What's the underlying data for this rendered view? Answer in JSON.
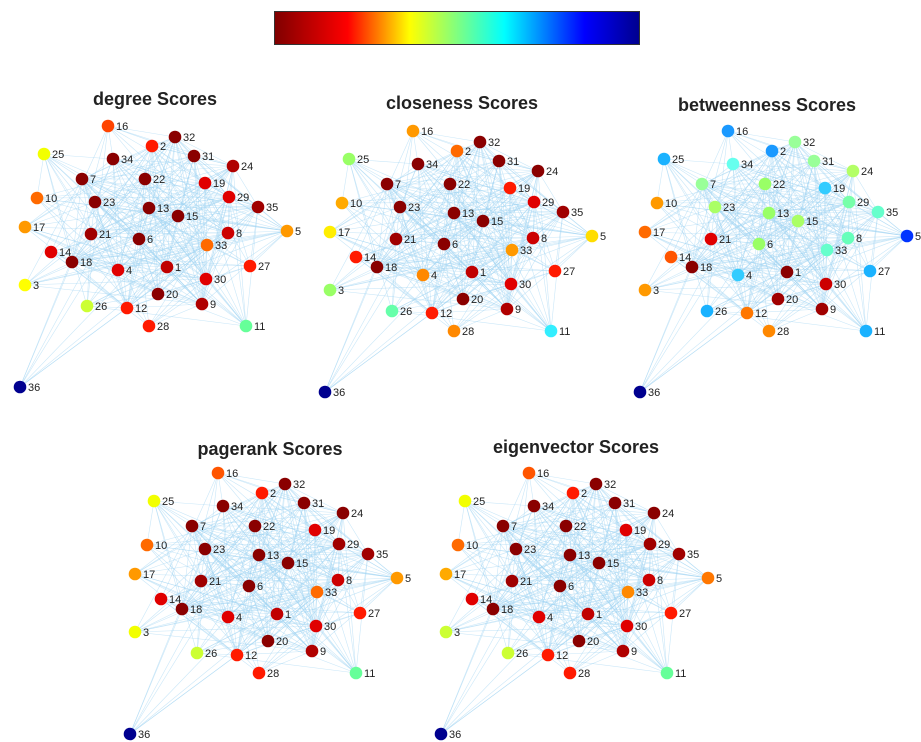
{
  "colormap": {
    "name": "jet-reversed",
    "stops": [
      "#800000",
      "#ff0000",
      "#ffff00",
      "#80ff80",
      "#00ffff",
      "#0000ff",
      "#00008f"
    ]
  },
  "edge_color": "#9fd3f2",
  "panels": [
    {
      "title": "degree Scores",
      "colors": {
        "1": "#c00000",
        "2": "#ff1a00",
        "3": "#ffff00",
        "4": "#e00000",
        "5": "#ff9900",
        "6": "#8a0000",
        "7": "#8a0000",
        "8": "#cc0000",
        "9": "#b00000",
        "10": "#ff6a00",
        "11": "#66ff99",
        "12": "#ff1a00",
        "13": "#8a0000",
        "14": "#e00000",
        "15": "#8a0000",
        "16": "#ff4400",
        "17": "#ff9900",
        "18": "#8a0000",
        "19": "#e00000",
        "20": "#8a0000",
        "21": "#a00000",
        "22": "#8a0000",
        "23": "#8a0000",
        "24": "#b00000",
        "25": "#f2ff00",
        "26": "#ccff33",
        "27": "#ff1a00",
        "28": "#ff1a00",
        "29": "#e00000",
        "30": "#e00000",
        "31": "#8a0000",
        "32": "#8a0000",
        "33": "#ff6a00",
        "34": "#8a0000",
        "35": "#a00000",
        "36": "#00008f"
      }
    },
    {
      "title": "closeness Scores",
      "colors": {
        "1": "#c00000",
        "2": "#ff6a00",
        "3": "#99ff66",
        "4": "#ff8800",
        "5": "#ffdd00",
        "6": "#8a0000",
        "7": "#8a0000",
        "8": "#cc0000",
        "9": "#b00000",
        "10": "#ffaa00",
        "11": "#33eeff",
        "12": "#ff1a00",
        "13": "#8a0000",
        "14": "#ff1a00",
        "15": "#8a0000",
        "16": "#ff9900",
        "17": "#ffee00",
        "18": "#8a0000",
        "19": "#ff1a00",
        "20": "#8a0000",
        "21": "#a00000",
        "22": "#8a0000",
        "23": "#8a0000",
        "24": "#8a0000",
        "25": "#99ff66",
        "26": "#66ffaa",
        "27": "#ff1a00",
        "28": "#ff8800",
        "29": "#e00000",
        "30": "#e00000",
        "31": "#8a0000",
        "32": "#8a0000",
        "33": "#ff9900",
        "34": "#8a0000",
        "35": "#a00000",
        "36": "#00008f"
      }
    },
    {
      "title": "betweenness Scores",
      "colors": {
        "1": "#8a0000",
        "2": "#1a99ff",
        "3": "#ff9900",
        "4": "#33ccff",
        "5": "#0033ff",
        "6": "#99ff66",
        "7": "#99ff99",
        "8": "#66ffbb",
        "9": "#a00000",
        "10": "#ff9900",
        "11": "#1ab2ff",
        "12": "#ff7700",
        "13": "#99ff66",
        "14": "#ff5500",
        "15": "#aaff66",
        "16": "#1a99ff",
        "17": "#ff6a00",
        "18": "#8a0000",
        "19": "#33ccff",
        "20": "#a00000",
        "21": "#e00000",
        "22": "#99ff66",
        "23": "#aaff66",
        "24": "#b3ff66",
        "25": "#1ab2ff",
        "26": "#1ab2ff",
        "27": "#1ab2ff",
        "28": "#ff8800",
        "29": "#77ffaa",
        "30": "#cc0000",
        "31": "#99ff99",
        "32": "#99ff99",
        "33": "#66ffcc",
        "34": "#66ffee",
        "35": "#66ffcc",
        "36": "#00008f"
      }
    },
    {
      "title": "pagerank Scores",
      "colors": {
        "1": "#c00000",
        "2": "#ff1a00",
        "3": "#f2ff00",
        "4": "#e00000",
        "5": "#ff9900",
        "6": "#8a0000",
        "7": "#8a0000",
        "8": "#cc0000",
        "9": "#b00000",
        "10": "#ff6a00",
        "11": "#66ff99",
        "12": "#ff1a00",
        "13": "#8a0000",
        "14": "#e00000",
        "15": "#8a0000",
        "16": "#ff5500",
        "17": "#ff9900",
        "18": "#8a0000",
        "19": "#e00000",
        "20": "#8a0000",
        "21": "#a00000",
        "22": "#8a0000",
        "23": "#8a0000",
        "24": "#8a0000",
        "25": "#f2ff00",
        "26": "#ccff33",
        "27": "#ff1a00",
        "28": "#ff1a00",
        "29": "#a00000",
        "30": "#e00000",
        "31": "#8a0000",
        "32": "#8a0000",
        "33": "#ff6a00",
        "34": "#8a0000",
        "35": "#a00000",
        "36": "#00008f"
      }
    },
    {
      "title": "eigenvector Scores",
      "colors": {
        "1": "#c00000",
        "2": "#ff1a00",
        "3": "#ccff33",
        "4": "#e00000",
        "5": "#ff7700",
        "6": "#8a0000",
        "7": "#8a0000",
        "8": "#cc0000",
        "9": "#b00000",
        "10": "#ff6a00",
        "11": "#66ff99",
        "12": "#ff1a00",
        "13": "#8a0000",
        "14": "#e00000",
        "15": "#8a0000",
        "16": "#ff5500",
        "17": "#ffaa00",
        "18": "#8a0000",
        "19": "#e00000",
        "20": "#8a0000",
        "21": "#a00000",
        "22": "#8a0000",
        "23": "#8a0000",
        "24": "#8a0000",
        "25": "#f2ff00",
        "26": "#ccff33",
        "27": "#ff1a00",
        "28": "#ff1a00",
        "29": "#a00000",
        "30": "#e00000",
        "31": "#8a0000",
        "32": "#8a0000",
        "33": "#ff8800",
        "34": "#8a0000",
        "35": "#a00000",
        "36": "#00008f"
      }
    }
  ],
  "node_ids": [
    "1",
    "2",
    "3",
    "4",
    "5",
    "6",
    "7",
    "8",
    "9",
    "10",
    "11",
    "12",
    "13",
    "14",
    "15",
    "16",
    "17",
    "18",
    "19",
    "20",
    "21",
    "22",
    "23",
    "24",
    "25",
    "26",
    "27",
    "28",
    "29",
    "30",
    "31",
    "32",
    "33",
    "34",
    "35",
    "36"
  ]
}
